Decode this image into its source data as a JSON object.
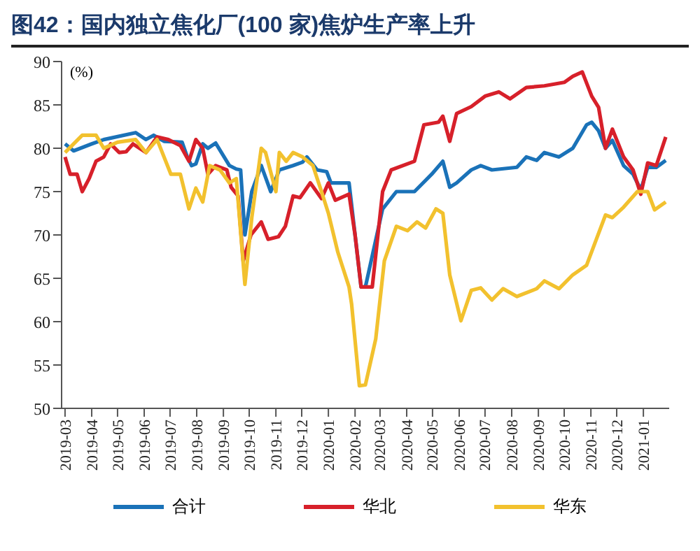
{
  "chart_data": {
    "type": "line",
    "title": "图42：国内独立焦化厂(100 家)焦炉生产率上升",
    "ylabel": "(%)",
    "xlim": [
      "2019-02-25",
      "2021-01-31"
    ],
    "xticks": [
      "2019-03",
      "2019-04",
      "2019-05",
      "2019-06",
      "2019-07",
      "2019-08",
      "2019-09",
      "2019-10",
      "2019-11",
      "2019-12",
      "2020-01",
      "2020-02",
      "2020-03",
      "2020-04",
      "2020-05",
      "2020-06",
      "2020-07",
      "2020-08",
      "2020-09",
      "2020-10",
      "2020-11",
      "2020-12",
      "2021-01"
    ],
    "ylim": [
      50,
      90
    ],
    "yticks": [
      50,
      55,
      60,
      65,
      70,
      75,
      80,
      85,
      90
    ],
    "legend": "bottom",
    "series": [
      {
        "name": "合计",
        "color": "#1a72b8",
        "x": [
          "2019-03-01",
          "2019-03-11",
          "2019-04-01",
          "2019-04-15",
          "2019-05-22",
          "2019-06-03",
          "2019-06-12",
          "2019-06-24",
          "2019-07-15",
          "2019-07-21",
          "2019-07-26",
          "2019-07-31",
          "2019-08-08",
          "2019-08-14",
          "2019-08-23",
          "2019-09-08",
          "2019-09-16",
          "2019-09-21",
          "2019-09-26",
          "2019-10-04",
          "2019-10-15",
          "2019-10-26",
          "2019-11-05",
          "2019-11-21",
          "2019-12-02",
          "2019-12-07",
          "2019-12-19",
          "2019-12-30",
          "2020-01-04",
          "2020-01-17",
          "2020-01-25",
          "2020-02-08",
          "2020-02-13",
          "2020-03-04",
          "2020-03-20",
          "2020-04-10",
          "2020-04-30",
          "2020-05-13",
          "2020-05-21",
          "2020-05-29",
          "2020-06-15",
          "2020-06-26",
          "2020-07-09",
          "2020-08-07",
          "2020-08-18",
          "2020-08-30",
          "2020-09-08",
          "2020-09-25",
          "2020-10-11",
          "2020-10-27",
          "2020-11-02",
          "2020-11-10",
          "2020-11-18",
          "2020-11-26",
          "2020-12-09",
          "2020-12-20",
          "2020-12-29",
          "2021-01-06",
          "2021-01-16",
          "2021-01-27"
        ],
        "values": [
          80.5,
          79.7,
          80.5,
          81,
          81.8,
          81,
          81.5,
          80.8,
          80.7,
          79,
          78,
          78.2,
          80.5,
          80,
          80.6,
          78,
          77.6,
          77.5,
          70,
          75,
          78,
          75,
          77.5,
          78,
          78.4,
          79,
          77.5,
          77.3,
          76,
          76,
          76,
          64,
          64,
          73,
          75,
          75,
          77,
          78.5,
          75.5,
          76,
          77.5,
          78,
          77.5,
          77.8,
          79,
          78.6,
          79.5,
          79,
          80,
          82.7,
          83,
          82,
          80,
          80.9,
          78,
          77,
          75.2,
          77.8,
          77.8,
          78.6
        ]
      },
      {
        "name": "华北",
        "color": "#d7202a",
        "x": [
          "2019-03-01",
          "2019-03-07",
          "2019-03-15",
          "2019-03-21",
          "2019-03-29",
          "2019-04-06",
          "2019-04-15",
          "2019-04-23",
          "2019-05-03",
          "2019-05-11",
          "2019-05-19",
          "2019-06-03",
          "2019-06-16",
          "2019-06-29",
          "2019-07-13",
          "2019-07-23",
          "2019-07-31",
          "2019-08-08",
          "2019-08-14",
          "2019-08-23",
          "2019-09-05",
          "2019-09-10",
          "2019-09-18",
          "2019-09-24",
          "2019-10-03",
          "2019-10-15",
          "2019-10-23",
          "2019-11-04",
          "2019-11-12",
          "2019-11-21",
          "2019-11-29",
          "2019-12-11",
          "2019-12-24",
          "2020-01-01",
          "2020-01-09",
          "2020-01-25",
          "2020-02-01",
          "2020-02-08",
          "2020-02-21",
          "2020-03-04",
          "2020-03-14",
          "2020-04-10",
          "2020-04-21",
          "2020-05-08",
          "2020-05-13",
          "2020-05-21",
          "2020-05-29",
          "2020-06-15",
          "2020-07-01",
          "2020-07-17",
          "2020-07-30",
          "2020-08-18",
          "2020-09-08",
          "2020-10-01",
          "2020-10-11",
          "2020-10-22",
          "2020-11-02",
          "2020-11-10",
          "2020-11-18",
          "2020-11-26",
          "2020-12-09",
          "2020-12-20",
          "2020-12-29",
          "2021-01-06",
          "2021-01-16",
          "2021-01-27"
        ],
        "values": [
          79,
          77,
          77,
          75,
          76.5,
          78.5,
          79,
          80.5,
          79.5,
          79.6,
          80.5,
          79.5,
          81.3,
          81,
          80.3,
          78.5,
          81,
          80,
          77,
          78,
          77.5,
          75.5,
          74.5,
          67,
          70,
          71.5,
          69.5,
          69.8,
          71,
          74.5,
          74.3,
          76,
          74.2,
          76,
          74,
          74.7,
          70,
          64,
          64,
          75,
          77.5,
          78.5,
          82.7,
          83,
          83.7,
          80.8,
          84,
          84.8,
          86,
          86.5,
          85.7,
          87,
          87.2,
          87.6,
          88.3,
          88.8,
          86,
          84.7,
          80,
          82.2,
          79,
          77.5,
          74.7,
          78.3,
          78,
          81.3
        ]
      },
      {
        "name": "华东",
        "color": "#f2c12e",
        "x": [
          "2019-03-01",
          "2019-03-21",
          "2019-04-06",
          "2019-04-15",
          "2019-05-01",
          "2019-05-22",
          "2019-06-03",
          "2019-06-16",
          "2019-07-02",
          "2019-07-13",
          "2019-07-23",
          "2019-07-31",
          "2019-08-08",
          "2019-08-16",
          "2019-08-28",
          "2019-09-08",
          "2019-09-16",
          "2019-09-26",
          "2019-10-04",
          "2019-10-15",
          "2019-10-20",
          "2019-11-01",
          "2019-11-05",
          "2019-11-13",
          "2019-11-21",
          "2019-12-02",
          "2019-12-14",
          "2019-12-24",
          "2020-01-01",
          "2020-01-12",
          "2020-01-25",
          "2020-01-28",
          "2020-02-06",
          "2020-02-13",
          "2020-02-25",
          "2020-03-06",
          "2020-03-20",
          "2020-04-02",
          "2020-04-13",
          "2020-04-23",
          "2020-05-05",
          "2020-05-13",
          "2020-05-21",
          "2020-06-03",
          "2020-06-15",
          "2020-06-26",
          "2020-07-09",
          "2020-07-22",
          "2020-08-07",
          "2020-08-30",
          "2020-09-08",
          "2020-09-25",
          "2020-10-11",
          "2020-10-27",
          "2020-11-07",
          "2020-11-18",
          "2020-11-26",
          "2020-12-09",
          "2020-12-25",
          "2021-01-06",
          "2021-01-14",
          "2021-01-27"
        ],
        "values": [
          79.5,
          81.5,
          81.5,
          80,
          80.7,
          81,
          79.5,
          81,
          77,
          77,
          73,
          75.4,
          73.8,
          78,
          77.5,
          76,
          76.5,
          64.3,
          72,
          80,
          79.5,
          75,
          79.5,
          78.5,
          79.5,
          79,
          78,
          75,
          72.5,
          68,
          64,
          62,
          52.6,
          52.7,
          58,
          67,
          71,
          70.5,
          71.5,
          70.8,
          73,
          72.5,
          65.4,
          60.1,
          63.6,
          63.9,
          62.5,
          63.8,
          62.9,
          63.8,
          64.7,
          63.8,
          65.4,
          66.5,
          69.4,
          72.3,
          72,
          73.2,
          75,
          75,
          72.9,
          73.8
        ]
      }
    ]
  }
}
